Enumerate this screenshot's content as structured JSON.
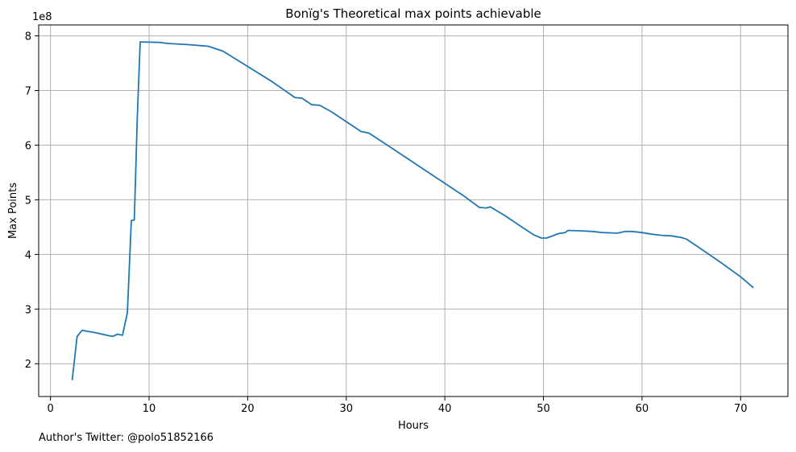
{
  "chart_data": {
    "type": "line",
    "title": "Bonïg's Theoretical max points achievable",
    "xlabel": "Hours",
    "ylabel": "Max Points",
    "offset_label": "1e8",
    "xlim": [
      -1.2,
      74.8
    ],
    "ylim": [
      1.4,
      8.2
    ],
    "x_ticks": [
      0,
      10,
      20,
      30,
      40,
      50,
      60,
      70
    ],
    "y_ticks": [
      2,
      3,
      4,
      5,
      6,
      7,
      8
    ],
    "grid": true,
    "line_color": "#1f77b4",
    "series": [
      {
        "x": [
          2.2,
          2.7,
          3.2,
          4.5,
          6.0,
          6.3,
          6.8,
          7.3,
          7.8,
          8.2,
          8.5,
          8.8,
          9.1,
          11.0,
          12.0,
          14.0,
          16.0,
          17.5,
          20.0,
          22.5,
          24.8,
          25.5,
          26.5,
          27.3,
          28.5,
          30.0,
          31.5,
          32.3,
          34.0,
          36.0,
          38.0,
          40.0,
          42.0,
          43.5,
          44.2,
          44.6,
          46.0,
          47.5,
          49.0,
          49.8,
          50.3,
          50.8,
          51.5,
          52.2,
          52.5,
          54.0,
          55.0,
          56.0,
          57.5,
          58.3,
          59.0,
          60.0,
          61.0,
          62.0,
          63.0,
          64.0,
          64.5,
          66.0,
          68.0,
          70.0,
          71.3
        ],
        "y": [
          1.7,
          2.5,
          2.61,
          2.57,
          2.51,
          2.5,
          2.54,
          2.52,
          2.93,
          4.62,
          4.63,
          6.5,
          7.89,
          7.88,
          7.86,
          7.84,
          7.81,
          7.72,
          7.44,
          7.16,
          6.87,
          6.86,
          6.74,
          6.73,
          6.61,
          6.43,
          6.25,
          6.22,
          6.02,
          5.78,
          5.54,
          5.3,
          5.06,
          4.86,
          4.85,
          4.87,
          4.72,
          4.54,
          4.36,
          4.3,
          4.3,
          4.33,
          4.38,
          4.4,
          4.44,
          4.43,
          4.42,
          4.4,
          4.39,
          4.42,
          4.42,
          4.4,
          4.37,
          4.35,
          4.34,
          4.31,
          4.28,
          4.1,
          3.85,
          3.59,
          3.39
        ]
      }
    ]
  },
  "footnote": "Author's Twitter: @polo51852166"
}
